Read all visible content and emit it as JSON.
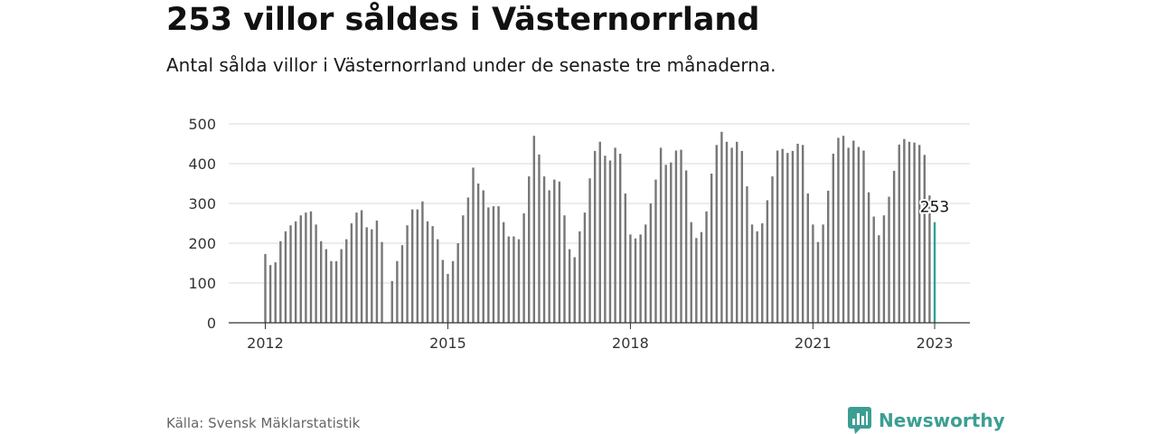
{
  "title": "253 villor såldes i Västernorrland",
  "subtitle": "Antal sålda villor i Västernorrland under de senaste tre månaderna.",
  "source": "Källa: Svensk Mäklarstatistik",
  "brand": "Newsworthy",
  "colors": {
    "bar": "#777777",
    "highlight": "#2ca39a",
    "grid": "#d9d9d9",
    "axis": "#333333",
    "brand": "#3c9e93"
  },
  "chart_data": {
    "type": "bar",
    "title": "",
    "xlabel": "",
    "ylabel": "",
    "ylim": [
      0,
      500
    ],
    "yticks": [
      0,
      100,
      200,
      300,
      400,
      500
    ],
    "x_tick_labels": [
      "2012",
      "2015",
      "2018",
      "2021",
      "2023"
    ],
    "x_tick_dates": [
      "2012-01",
      "2015-01",
      "2018-01",
      "2021-01",
      "2023-01"
    ],
    "grid": true,
    "legend": "none",
    "highlight": {
      "date": "2023-01",
      "value": 253,
      "label": "253"
    },
    "series": [
      {
        "dates": [
          "2012-01",
          "2012-02",
          "2012-03",
          "2012-04",
          "2012-05",
          "2012-06",
          "2012-07",
          "2012-08",
          "2012-09",
          "2012-10",
          "2012-11",
          "2012-12",
          "2013-01",
          "2013-02",
          "2013-03",
          "2013-04",
          "2013-05",
          "2013-06",
          "2013-07",
          "2013-08",
          "2013-09",
          "2013-10",
          "2013-11",
          "2013-12",
          "2014-01",
          "2014-02",
          "2014-03",
          "2014-04",
          "2014-05",
          "2014-06",
          "2014-07",
          "2014-08",
          "2014-09",
          "2014-10",
          "2014-11",
          "2014-12",
          "2015-01",
          "2015-02",
          "2015-03",
          "2015-04",
          "2015-05",
          "2015-06",
          "2015-07",
          "2015-08",
          "2015-09",
          "2015-10",
          "2015-11",
          "2015-12",
          "2016-01",
          "2016-02",
          "2016-03",
          "2016-04",
          "2016-05",
          "2016-06",
          "2016-07",
          "2016-08",
          "2016-09",
          "2016-10",
          "2016-11",
          "2016-12",
          "2017-01",
          "2017-02",
          "2017-03",
          "2017-04",
          "2017-05",
          "2017-06",
          "2017-07",
          "2017-08",
          "2017-09",
          "2017-10",
          "2017-11",
          "2017-12",
          "2018-01",
          "2018-02",
          "2018-03",
          "2018-04",
          "2018-05",
          "2018-06",
          "2018-07",
          "2018-08",
          "2018-09",
          "2018-10",
          "2018-11",
          "2018-12",
          "2019-01",
          "2019-02",
          "2019-03",
          "2019-04",
          "2019-05",
          "2019-06",
          "2019-07",
          "2019-08",
          "2019-09",
          "2019-10",
          "2019-11",
          "2019-12",
          "2020-01",
          "2020-02",
          "2020-03",
          "2020-04",
          "2020-05",
          "2020-06",
          "2020-07",
          "2020-08",
          "2020-09",
          "2020-10",
          "2020-11",
          "2020-12",
          "2021-01",
          "2021-02",
          "2021-03",
          "2021-04",
          "2021-05",
          "2021-06",
          "2021-07",
          "2021-08",
          "2021-09",
          "2021-10",
          "2021-11",
          "2021-12",
          "2022-01",
          "2022-02",
          "2022-03",
          "2022-04",
          "2022-05",
          "2022-06",
          "2022-07",
          "2022-08",
          "2022-09",
          "2022-10",
          "2022-11",
          "2022-12",
          "2023-01"
        ],
        "values": [
          173,
          145,
          152,
          205,
          230,
          245,
          255,
          270,
          277,
          280,
          247,
          205,
          185,
          155,
          155,
          185,
          210,
          250,
          277,
          283,
          240,
          235,
          257,
          203,
          null,
          105,
          155,
          195,
          245,
          285,
          285,
          305,
          255,
          243,
          210,
          158,
          123,
          155,
          200,
          270,
          315,
          390,
          350,
          333,
          290,
          293,
          293,
          253,
          217,
          217,
          210,
          275,
          368,
          470,
          423,
          368,
          333,
          360,
          355,
          270,
          185,
          165,
          230,
          277,
          363,
          432,
          455,
          420,
          408,
          440,
          425,
          325,
          222,
          212,
          222,
          247,
          300,
          360,
          440,
          397,
          403,
          433,
          435,
          383,
          253,
          213,
          228,
          280,
          375,
          447,
          480,
          455,
          440,
          455,
          432,
          343,
          247,
          230,
          250,
          308,
          368,
          433,
          437,
          427,
          432,
          450,
          447,
          325,
          247,
          203,
          247,
          332,
          425,
          465,
          470,
          440,
          458,
          442,
          433,
          328,
          267,
          220,
          270,
          317,
          382,
          448,
          462,
          455,
          453,
          447,
          422,
          320,
          253
        ]
      }
    ]
  }
}
